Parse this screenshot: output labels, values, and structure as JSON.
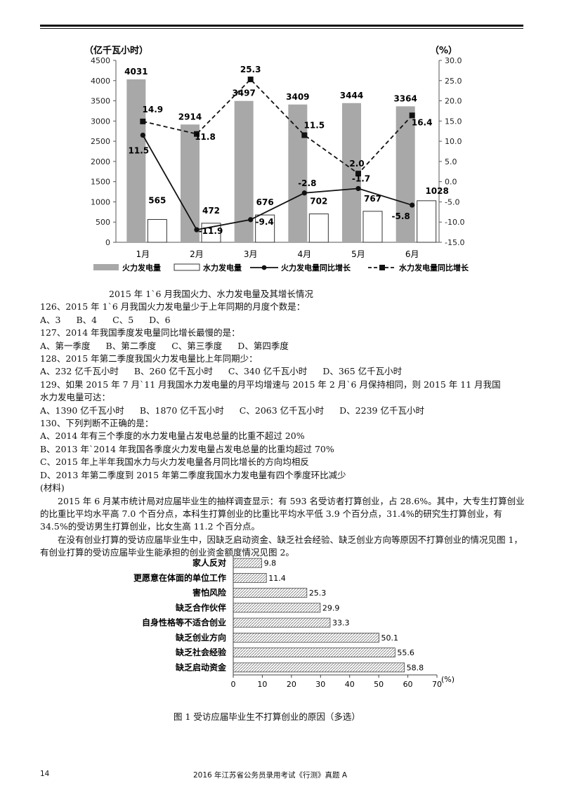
{
  "chart1": {
    "chart_data": {
      "type": "bar+line",
      "categories": [
        "1月",
        "2月",
        "3月",
        "4月",
        "5月",
        "6月"
      ],
      "left_axis_label": "（亿千瓦小时）",
      "right_axis_label": "（%）",
      "left_ylim": [
        0,
        4500
      ],
      "right_ylim": [
        -15,
        30
      ],
      "left_ticks": [
        "0",
        "500",
        "1000",
        "1500",
        "2000",
        "2500",
        "3000",
        "3500",
        "4000",
        "4500"
      ],
      "right_ticks": [
        "-15.0",
        "-10.0",
        "-5.0",
        "0.0",
        "5.0",
        "10.0",
        "15.0",
        "20.0",
        "25.0",
        "30.0"
      ],
      "series": [
        {
          "name": "火力发电量",
          "type": "bar",
          "color": "#a8a8a8",
          "values": [
            4031,
            2914,
            3497,
            3409,
            3444,
            3364
          ],
          "labels": [
            "4031",
            "2914",
            "3497",
            "3409",
            "3444",
            "3364"
          ]
        },
        {
          "name": "水力发电量",
          "type": "bar",
          "color": "#ffffff",
          "values": [
            565,
            472,
            676,
            702,
            767,
            1028
          ],
          "labels": [
            "565",
            "472",
            "676",
            "702",
            "767",
            "1028"
          ]
        },
        {
          "name": "火力发电量同比增长",
          "type": "line",
          "style": "solid",
          "marker": "circle",
          "values": [
            11.5,
            -11.9,
            -9.4,
            -2.8,
            -1.7,
            -5.8
          ],
          "labels": [
            "11.5",
            "-11.9",
            "-9.4",
            "-2.8",
            "-1.7",
            "-5.8"
          ]
        },
        {
          "name": "水力发电量同比增长",
          "type": "line",
          "style": "dashed",
          "marker": "square",
          "values": [
            14.9,
            11.8,
            25.3,
            11.5,
            2.0,
            16.4
          ],
          "labels": [
            "14.9",
            "11.8",
            "25.3",
            "11.5",
            "2.0",
            "16.4"
          ]
        }
      ]
    }
  },
  "chart1_title": "2015 年 1`6 月我国火力、水力发电量及其增长情况",
  "questions": {
    "q126": "126、2015 年 1`6 月我国火力发电量少于上年同期的月度个数是：",
    "q126_opts": [
      "A、3",
      "B、4",
      "C、5",
      "D、6"
    ],
    "q127": "127、2014 年我国季度发电量同比增长最慢的是：",
    "q127_opts": [
      "A、第一季度",
      "B、第二季度",
      "C、第三季度",
      "D、第四季度"
    ],
    "q128": "128、2015 年第二季度我国火力发电量比上年同期少：",
    "q128_opts": [
      "A、232 亿千瓦小时",
      "B、260 亿千瓦小时",
      "C、340 亿千瓦小时",
      "D、365 亿千瓦小时"
    ],
    "q129_line1": "129、如果 2015 年 7 月`11 月我国水力发电量的月平均增速与 2015 年 2 月`6 月保持相同，则 2015 年 11 月我国",
    "q129_line2": "水力发电量可达：",
    "q129_opts": [
      "A、1390 亿千瓦小时",
      "B、1870 亿千瓦小时",
      "C、2063 亿千瓦小时",
      "D、2239 亿千瓦小时"
    ],
    "q130": "130、下列判断不正确的是：",
    "q130_opts": [
      "A、2014 年有三个季度的水力发电量占发电总量的比重不超过 20%",
      "B、2013 年`2014 年我国各季度火力发电量占发电总量的比重均超过 70%",
      "C、2015 年上半年我国水力与火力发电量各月同比增长的方向均相反",
      "D、2013 年第二季度到 2015 年第二季度我国水力发电量有四个季度环比减少"
    ]
  },
  "material": {
    "label": "(材料)",
    "para1": "2015 年 6 月某市统计局对应届毕业生的抽样调查显示：有 593 名受访者打算创业，占 28.6%。其中，大专生打算创业的比重比平均水平高 7.0 个百分点，本科生打算创业的比重比平均水平低 3.9 个百分点，31.4%的研究生打算创业，有 34.5%的受访男生打算创业，比女生高 11.2 个百分点。",
    "para2": "在没有创业打算的受访应届毕业生中，因缺乏启动资金、缺乏社会经验、缺乏创业方向等原因不打算创业的情况见图 1，有创业打算的受访应届毕业生能承担的创业资金额度情况见图 2。"
  },
  "chart2": {
    "chart_data": {
      "type": "bar",
      "orientation": "horizontal",
      "pattern": "hatched",
      "categories": [
        "家人反对",
        "更愿意在体面的单位工作",
        "害怕风险",
        "缺乏合作伙伴",
        "自身性格等不适合创业",
        "缺乏创业方向",
        "缺乏社会经验",
        "缺乏启动资金"
      ],
      "values": [
        9.8,
        11.4,
        25.3,
        29.9,
        33.3,
        50.1,
        55.6,
        58.8
      ],
      "value_labels": [
        "9.8",
        "11.4",
        "25.3",
        "29.9",
        "33.3",
        "50.1",
        "55.6",
        "58.8"
      ],
      "xlim": [
        0,
        70
      ],
      "x_ticks": [
        "0",
        "10",
        "20",
        "30",
        "40",
        "50",
        "60",
        "70"
      ],
      "unit": "(%)"
    }
  },
  "chart2_title": "图 1   受访应届毕业生不打算创业的原因（多选）",
  "footer": {
    "page_number": "14",
    "title": "2016 年江苏省公务员录用考试《行测》真题 A"
  }
}
